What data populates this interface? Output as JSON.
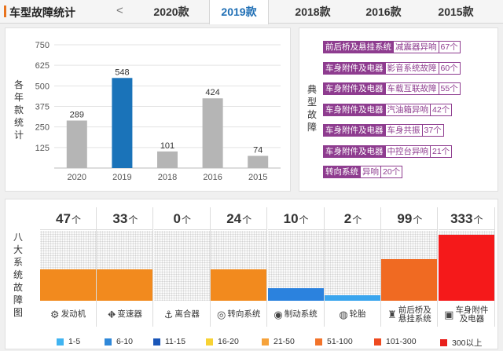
{
  "header": {
    "title": "车型故障统计",
    "prev_symbol": "<",
    "tabs": [
      {
        "label": "2020款",
        "active": false
      },
      {
        "label": "2019款",
        "active": true
      },
      {
        "label": "2018款",
        "active": false
      },
      {
        "label": "2016款",
        "active": false
      },
      {
        "label": "2015款",
        "active": false
      }
    ]
  },
  "yearly": {
    "side_label": "各年款统计",
    "chart_data": {
      "type": "bar",
      "categories": [
        "2020",
        "2019",
        "2018",
        "2016",
        "2015"
      ],
      "values": [
        289,
        548,
        101,
        424,
        74
      ],
      "ylim": [
        0,
        750
      ],
      "yticks": [
        125,
        250,
        375,
        500,
        625,
        750
      ],
      "highlight_index": 1,
      "colors": {
        "default": "#b5b5b5",
        "highlight": "#1a73b9"
      },
      "grid": true
    }
  },
  "typical": {
    "side_label": "典型故障",
    "items": [
      {
        "category": "前后桥及悬挂系统",
        "fault": "减震器异响",
        "count": "67个"
      },
      {
        "category": "车身附件及电器",
        "fault": "影音系统故障",
        "count": "60个"
      },
      {
        "category": "车身附件及电器",
        "fault": "车载互联故障",
        "count": "55个"
      },
      {
        "category": "车身附件及电器",
        "fault": "汽油箱异响",
        "count": "42个"
      },
      {
        "category": "车身附件及电器",
        "fault": "车身共振",
        "count": "37个"
      },
      {
        "category": "车身附件及电器",
        "fault": "中控台异响",
        "count": "21个"
      },
      {
        "category": "转向系统",
        "fault": "异响",
        "count": "20个"
      }
    ]
  },
  "systems": {
    "side_label": "八大系统故障图",
    "unit": "个",
    "items": [
      {
        "count": "47",
        "label": "发动机",
        "icon": "engine-icon",
        "glyph": "⚙",
        "level": 0.45,
        "color": "#f28a1e"
      },
      {
        "count": "33",
        "label": "变速器",
        "icon": "gear-lever-icon",
        "glyph": "⛖",
        "level": 0.45,
        "color": "#f28a1e"
      },
      {
        "count": "0",
        "label": "离合器",
        "icon": "clutch-pedal-icon",
        "glyph": "⚓",
        "level": 0,
        "color": "#f28a1e"
      },
      {
        "count": "24",
        "label": "转向系统",
        "icon": "steering-wheel-icon",
        "glyph": "◎",
        "level": 0.45,
        "color": "#f28a1e"
      },
      {
        "count": "10",
        "label": "制动系统",
        "icon": "brake-disc-icon",
        "glyph": "◉",
        "level": 0.18,
        "color": "#2b82de"
      },
      {
        "count": "2",
        "label": "轮胎",
        "icon": "tire-icon",
        "glyph": "◍",
        "level": 0.08,
        "color": "#3aa5ee"
      },
      {
        "count": "99",
        "label": "前后桥及\n悬挂系统",
        "icon": "suspension-icon",
        "glyph": "♜",
        "level": 0.6,
        "color": "#f06a22"
      },
      {
        "count": "333",
        "label": "车身附件\n及电器",
        "icon": "body-electric-icon",
        "glyph": "▣",
        "level": 0.94,
        "color": "#f5191a"
      }
    ]
  },
  "legend": [
    {
      "label": "1-5",
      "color": "#40b4f1"
    },
    {
      "label": "6-10",
      "color": "#2f88d9"
    },
    {
      "label": "11-15",
      "color": "#1a56b8"
    },
    {
      "label": "16-20",
      "color": "#f7d234"
    },
    {
      "label": "21-50",
      "color": "#f6a23a"
    },
    {
      "label": "51-100",
      "color": "#f2732a"
    },
    {
      "label": "101-300",
      "color": "#ee4a20"
    },
    {
      "label": "300以上",
      "color": "#e8201c"
    }
  ]
}
